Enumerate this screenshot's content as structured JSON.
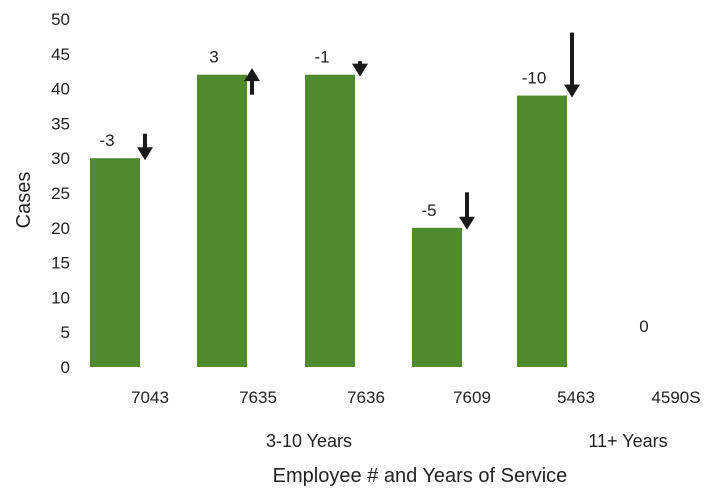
{
  "chart_data": {
    "type": "bar",
    "xlabel": "Employee # and Years of Service",
    "ylabel": "Cases",
    "ylim": [
      0,
      50
    ],
    "y_ticks": [
      0,
      5,
      10,
      15,
      20,
      25,
      30,
      35,
      40,
      45,
      50
    ],
    "grid": false,
    "categories": [
      "7043",
      "7635",
      "7636",
      "7609",
      "5463",
      "4590S"
    ],
    "values": [
      30,
      42,
      42,
      20,
      39,
      0
    ],
    "data_labels": [
      "-3",
      "3",
      "-1",
      "-5",
      "-10",
      "0"
    ],
    "change_direction": [
      "down",
      "up",
      "down",
      "down",
      "down",
      "none"
    ],
    "groups": [
      {
        "label": "3-10 Years",
        "categories": [
          "7043",
          "7635",
          "7636",
          "7609"
        ]
      },
      {
        "label": "11+ Years",
        "categories": [
          "5463",
          "4590S"
        ]
      }
    ],
    "colors": {
      "bar": "#4f8a2e",
      "arrow": "#1a1a1a",
      "text": "#222222"
    }
  }
}
